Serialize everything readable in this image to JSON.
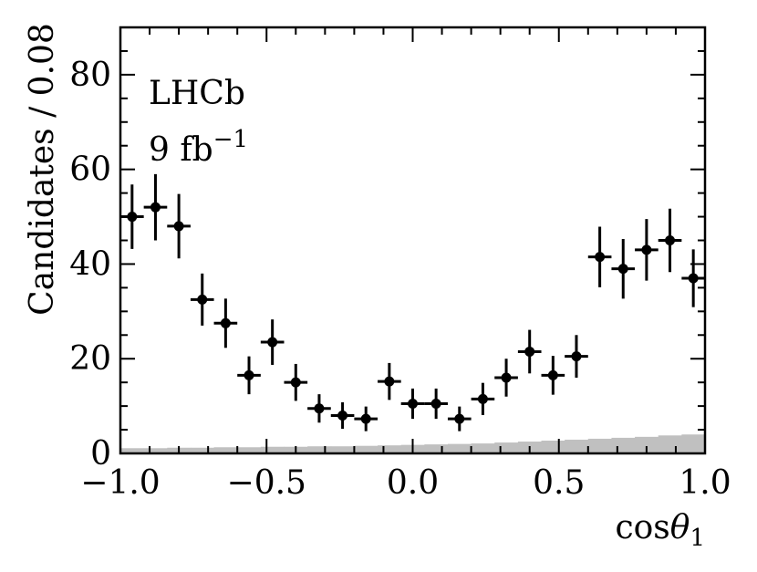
{
  "chart_data": {
    "type": "scatter",
    "xlabel": "cosθ₁",
    "ylabel": "Candidates / 0.08",
    "xlim": [
      -1.0,
      1.0
    ],
    "ylim": [
      0,
      90
    ],
    "x_ticks": [
      -1.0,
      -0.5,
      0.0,
      0.5,
      1.0
    ],
    "x_tick_labels": [
      "−1.0",
      "−0.5",
      "0.0",
      "0.5",
      "1.0"
    ],
    "y_ticks": [
      0,
      20,
      40,
      60,
      80
    ],
    "y_tick_labels": [
      "0",
      "20",
      "40",
      "60",
      "80"
    ],
    "annotations": [
      "LHCb",
      "9 fb⁻¹"
    ],
    "bin_width": 0.08,
    "points": [
      {
        "x": -0.96,
        "y": 50.0,
        "err": 6.8
      },
      {
        "x": -0.88,
        "y": 52.0,
        "err": 7.0
      },
      {
        "x": -0.8,
        "y": 48.0,
        "err": 6.8
      },
      {
        "x": -0.72,
        "y": 32.5,
        "err": 5.5
      },
      {
        "x": -0.64,
        "y": 27.5,
        "err": 5.2
      },
      {
        "x": -0.56,
        "y": 16.5,
        "err": 4.0
      },
      {
        "x": -0.48,
        "y": 23.5,
        "err": 4.8
      },
      {
        "x": -0.4,
        "y": 15.0,
        "err": 3.9
      },
      {
        "x": -0.32,
        "y": 9.5,
        "err": 3.0
      },
      {
        "x": -0.24,
        "y": 8.0,
        "err": 2.8
      },
      {
        "x": -0.16,
        "y": 7.3,
        "err": 2.6
      },
      {
        "x": -0.08,
        "y": 15.2,
        "err": 3.9
      },
      {
        "x": 0.0,
        "y": 10.5,
        "err": 3.2
      },
      {
        "x": 0.08,
        "y": 10.5,
        "err": 3.2
      },
      {
        "x": 0.16,
        "y": 7.3,
        "err": 2.6
      },
      {
        "x": 0.24,
        "y": 11.5,
        "err": 3.4
      },
      {
        "x": 0.32,
        "y": 16.0,
        "err": 4.0
      },
      {
        "x": 0.4,
        "y": 21.5,
        "err": 4.6
      },
      {
        "x": 0.48,
        "y": 16.5,
        "err": 4.1
      },
      {
        "x": 0.56,
        "y": 20.5,
        "err": 4.5
      },
      {
        "x": 0.64,
        "y": 41.5,
        "err": 6.4
      },
      {
        "x": 0.72,
        "y": 39.0,
        "err": 6.3
      },
      {
        "x": 0.8,
        "y": 43.0,
        "err": 6.5
      },
      {
        "x": 0.88,
        "y": 45.0,
        "err": 6.7
      },
      {
        "x": 0.96,
        "y": 37.0,
        "err": 6.1
      }
    ],
    "background_fill": {
      "color": "#c0c0c0",
      "values": [
        1.1,
        1.1,
        1.2,
        1.2,
        1.3,
        1.3,
        1.4,
        1.4,
        1.5,
        1.5,
        1.6,
        1.7,
        1.8,
        1.9,
        2.0,
        2.1,
        2.3,
        2.5,
        2.7,
        2.9,
        3.1,
        3.3,
        3.5,
        3.8,
        4.0
      ]
    },
    "marker_color": "#000000",
    "grid": false
  }
}
